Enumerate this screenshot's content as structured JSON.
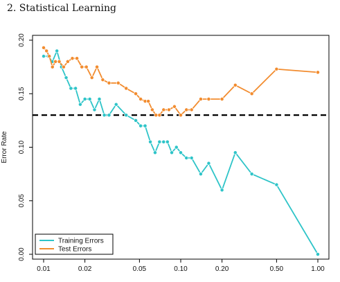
{
  "page_header": "2.  Statistical Learning",
  "chart_data": {
    "type": "line",
    "x_scale": "log",
    "xlim": [
      0.01,
      1.0
    ],
    "ylim": [
      0.0,
      0.2
    ],
    "x_ticks": [
      0.01,
      0.02,
      0.05,
      0.1,
      0.2,
      0.5,
      1.0
    ],
    "x_tick_labels": [
      "0.01",
      "0.02",
      "0.05",
      "0.10",
      "0.20",
      "0.50",
      "1.00"
    ],
    "y_ticks": [
      0.0,
      0.05,
      0.1,
      0.15,
      0.2
    ],
    "y_tick_labels": [
      "0.00",
      "0.05",
      "0.10",
      "0.15",
      "0.20"
    ],
    "xlabel": "",
    "ylabel": "Error Rate",
    "reference_line": {
      "y": 0.13,
      "style": "dashed",
      "color": "#000000"
    },
    "legend": {
      "position": "bottom-left"
    },
    "series": [
      {
        "name": "Training Errors",
        "color": "#2ec4c8",
        "x": [
          0.01,
          0.0108,
          0.0116,
          0.0125,
          0.0135,
          0.0146,
          0.0158,
          0.0171,
          0.0185,
          0.02,
          0.0217,
          0.0235,
          0.0255,
          0.0277,
          0.03,
          0.0338,
          0.04,
          0.047,
          0.051,
          0.055,
          0.06,
          0.065,
          0.07,
          0.075,
          0.08,
          0.086,
          0.093,
          0.1,
          0.11,
          0.12,
          0.14,
          0.16,
          0.2,
          0.25,
          0.33,
          0.5,
          1.0
        ],
        "values": [
          0.185,
          0.185,
          0.18,
          0.19,
          0.175,
          0.165,
          0.155,
          0.155,
          0.14,
          0.145,
          0.145,
          0.135,
          0.145,
          0.13,
          0.13,
          0.14,
          0.13,
          0.125,
          0.12,
          0.12,
          0.105,
          0.095,
          0.105,
          0.105,
          0.105,
          0.095,
          0.1,
          0.095,
          0.09,
          0.09,
          0.075,
          0.085,
          0.06,
          0.095,
          0.075,
          0.065,
          0.0
        ]
      },
      {
        "name": "Test Errors",
        "color": "#f28c2f",
        "x": [
          0.01,
          0.0105,
          0.011,
          0.0116,
          0.0122,
          0.013,
          0.014,
          0.015,
          0.0162,
          0.0175,
          0.019,
          0.0205,
          0.0225,
          0.0245,
          0.027,
          0.03,
          0.035,
          0.04,
          0.047,
          0.051,
          0.055,
          0.058,
          0.062,
          0.066,
          0.07,
          0.075,
          0.082,
          0.09,
          0.1,
          0.11,
          0.12,
          0.14,
          0.16,
          0.2,
          0.25,
          0.33,
          0.5,
          1.0
        ],
        "values": [
          0.193,
          0.19,
          0.185,
          0.175,
          0.18,
          0.18,
          0.175,
          0.18,
          0.183,
          0.183,
          0.175,
          0.175,
          0.165,
          0.175,
          0.163,
          0.16,
          0.16,
          0.155,
          0.15,
          0.145,
          0.143,
          0.143,
          0.135,
          0.13,
          0.13,
          0.135,
          0.135,
          0.138,
          0.13,
          0.135,
          0.135,
          0.145,
          0.145,
          0.145,
          0.158,
          0.15,
          0.173,
          0.17
        ]
      }
    ]
  }
}
